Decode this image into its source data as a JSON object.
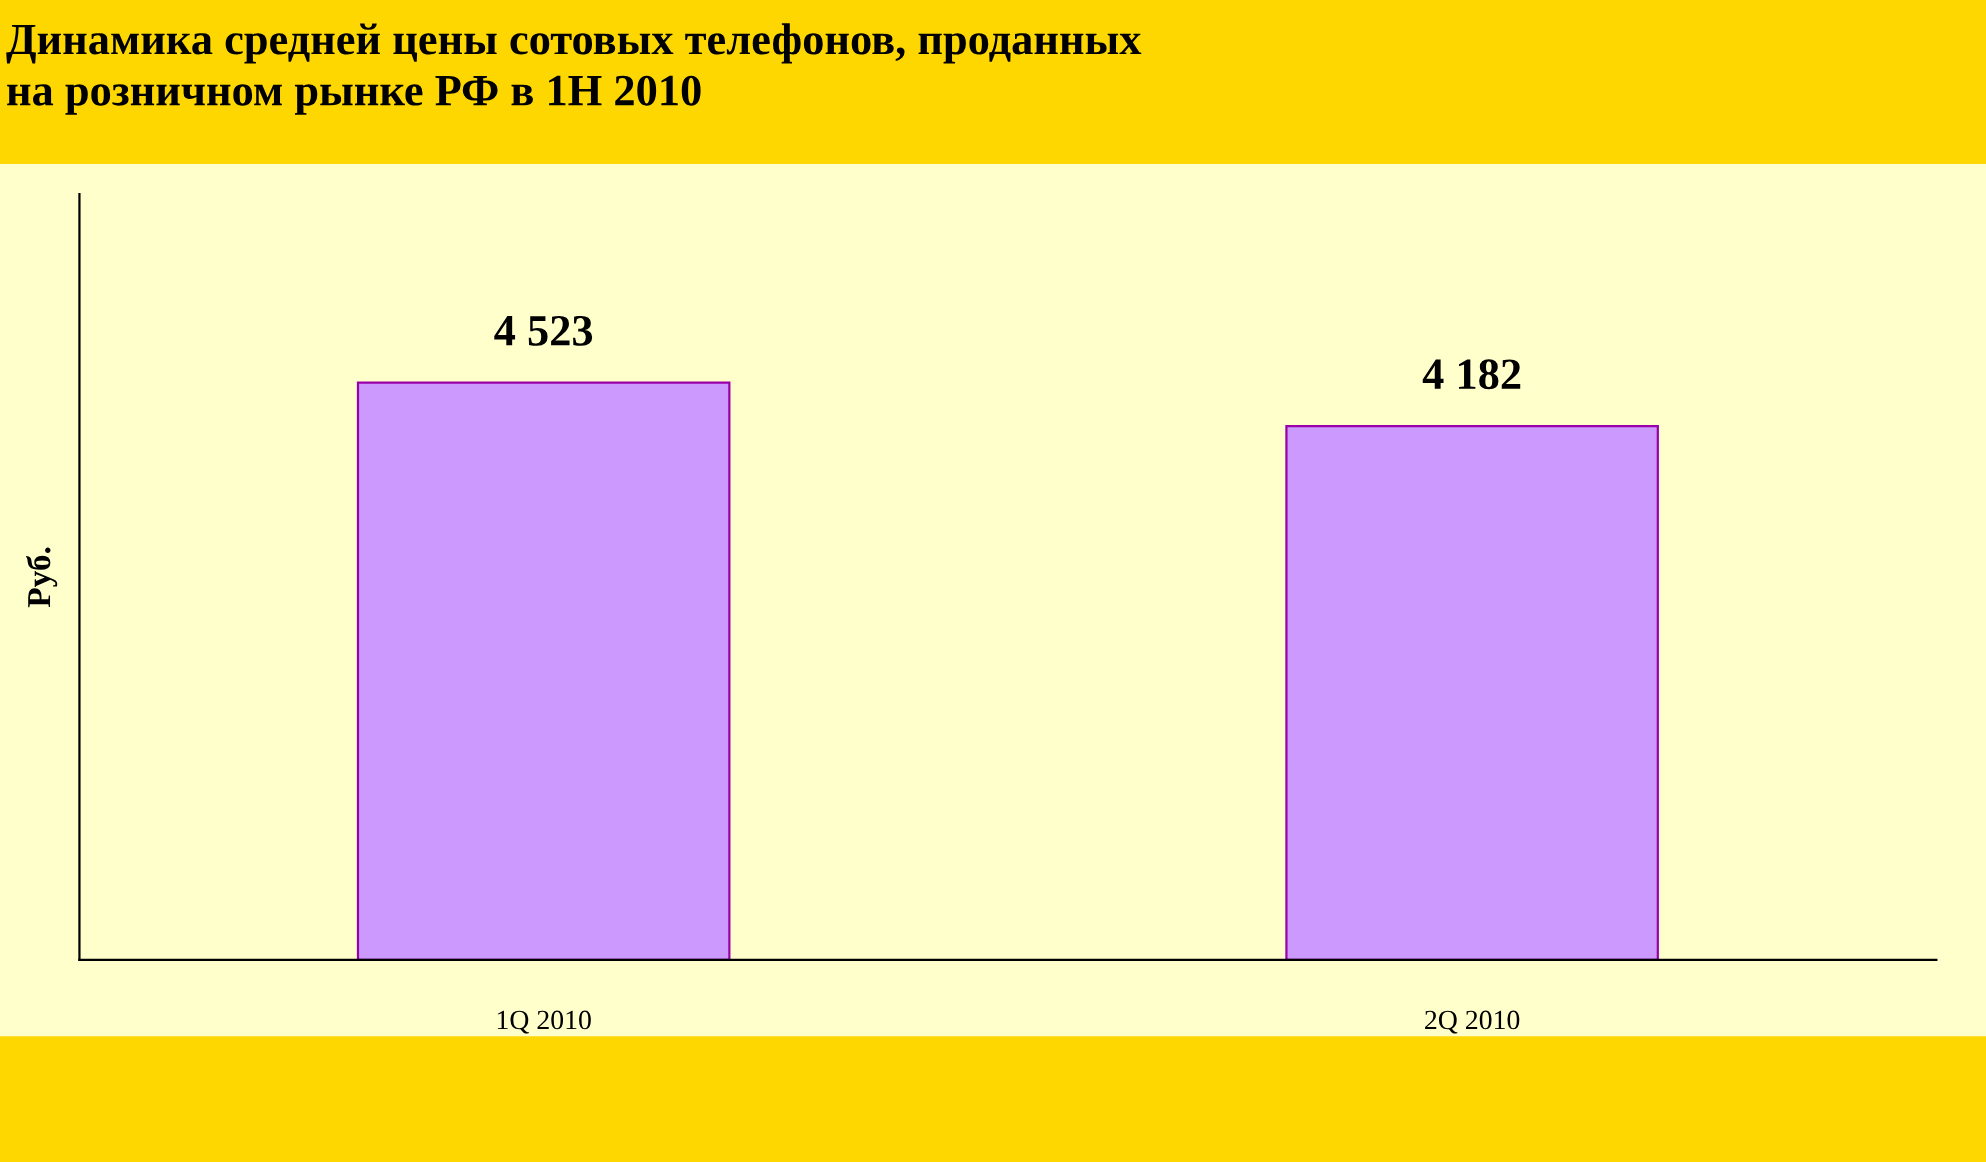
{
  "chart_data": {
    "type": "bar",
    "title": "Динамика средней цены сотовых телефонов, проданных\nна розничном рынке РФ в 1H 2010",
    "ylabel": "Руб.",
    "categories": [
      "1Q 2010",
      "2Q 2010"
    ],
    "values": [
      4523,
      4182
    ],
    "value_labels": [
      "4 523",
      "4 182"
    ],
    "color": "#cc99ff",
    "ylim": [
      0,
      6000
    ],
    "tick_labels": "x",
    "grid": false,
    "legend": false
  }
}
